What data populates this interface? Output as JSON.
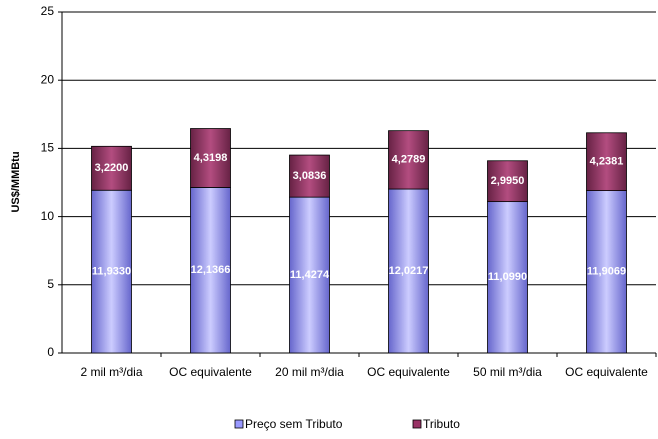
{
  "chart_data": {
    "type": "stacked_bar",
    "y_label": "US$/MMBtu",
    "categories": [
      "2 mil m³/dia",
      "OC equivalente",
      "20 mil m³/dia",
      "OC equivalente",
      "50 mil m³/dia",
      "OC equivalente"
    ],
    "series": [
      {
        "name": "Preço sem Tributo",
        "color": "#9999ff",
        "values": [
          11.933,
          12.1366,
          11.4274,
          12.0217,
          11.099,
          11.9069
        ],
        "value_labels": [
          "11,9330",
          "12,1366",
          "11,4274",
          "12,0217",
          "11,0990",
          "11,9069"
        ]
      },
      {
        "name": "Tributo",
        "color": "#993366",
        "values": [
          3.22,
          4.3198,
          3.0836,
          4.2789,
          2.995,
          4.2381
        ],
        "value_labels": [
          "3,2200",
          "4,3198",
          "3,0836",
          "4,2789",
          "2,9950",
          "4,2381"
        ]
      }
    ],
    "ylim": [
      0,
      25
    ],
    "yticks": [
      0,
      5,
      10,
      15,
      20,
      25
    ],
    "grid": true,
    "legend": "bottom"
  }
}
